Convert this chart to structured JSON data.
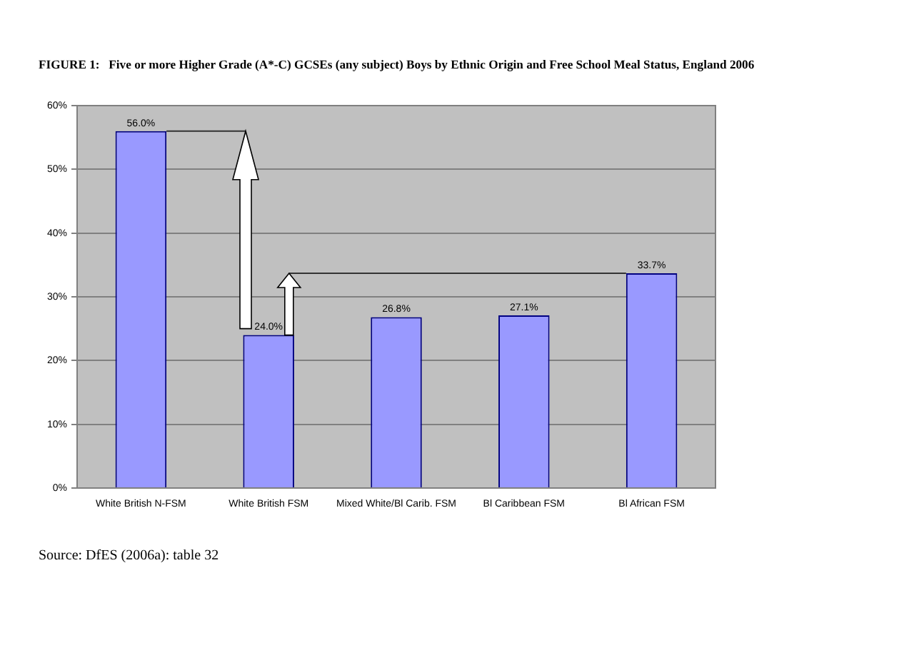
{
  "chart_data": {
    "type": "bar",
    "title": "FIGURE 1:   Five or more Higher Grade (A*-C) GCSEs (any subject) Boys by Ethnic Origin and Free School Meal Status, England 2006",
    "categories": [
      "White British N-FSM",
      "White British FSM",
      "Mixed White/Bl Carib. FSM",
      "Bl Caribbean FSM",
      "Bl African FSM"
    ],
    "values": [
      56.0,
      24.0,
      26.8,
      27.1,
      33.7
    ],
    "value_labels": [
      "56.0%",
      "24.0%",
      "26.8%",
      "27.1%",
      "33.7%"
    ],
    "color": "#9999ff",
    "ylim": [
      0,
      60
    ],
    "yticks": [
      {
        "value": 0,
        "label": "0%"
      },
      {
        "value": 10,
        "label": "10%"
      },
      {
        "value": 20,
        "label": "20%"
      },
      {
        "value": 30,
        "label": "30%"
      },
      {
        "value": 40,
        "label": "40%"
      },
      {
        "value": 50,
        "label": "50%"
      },
      {
        "value": 60,
        "label": "60%"
      }
    ],
    "grid": "y",
    "annotations": [
      "Source: DfES (2006a): table 32"
    ]
  }
}
